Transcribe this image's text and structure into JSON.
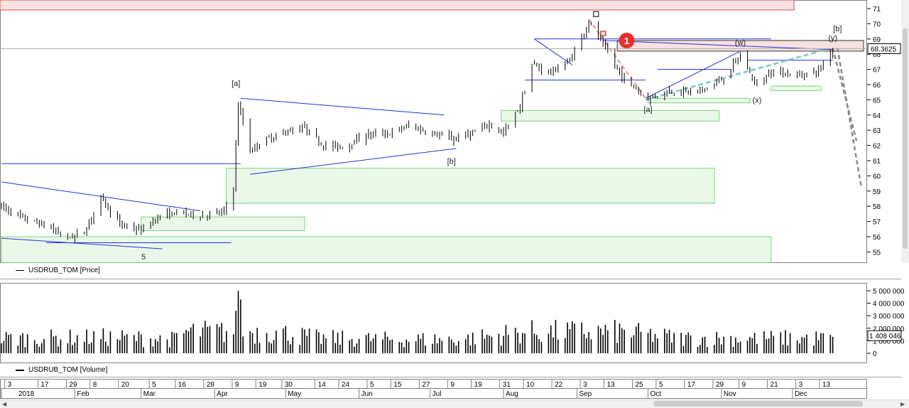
{
  "price_pane": {
    "legend_label": "USDRUB_TOM [Price]",
    "current_price_label": "68.3625",
    "y_ticks": [
      "71",
      "70",
      "69",
      "68",
      "67",
      "66",
      "65",
      "64",
      "63",
      "62",
      "61",
      "60",
      "59",
      "58",
      "57",
      "56",
      "55"
    ],
    "wave_labels": [
      {
        "text": "[a]",
        "date": "2018-04-10",
        "price": 65.9
      },
      {
        "text": "[b]",
        "date": "2018-07-10",
        "price": 60.8
      },
      {
        "text": "5",
        "date": "2018-03-02",
        "price": 54.5
      },
      {
        "text": "[a]",
        "date": "2018-10-01",
        "price": 64.2
      },
      {
        "text": "(w)",
        "date": "2018-11-09",
        "price": 68.6
      },
      {
        "text": "(x)",
        "date": "2018-11-16",
        "price": 64.8
      },
      {
        "text": "(y)",
        "date": "2018-12-18",
        "price": 68.9
      },
      {
        "text": "[b]",
        "date": "2018-12-20",
        "price": 69.5
      }
    ],
    "marker": {
      "text": "1",
      "date": "2018-09-22",
      "price": 68.9,
      "color": "#e8302f"
    }
  },
  "volume_pane": {
    "legend_label": "USDRUB_TOM [Volume]",
    "y_ticks": [
      "5 000 000",
      "4 000 000",
      "3 000 000",
      "2 000 000",
      "1 000 000",
      "0"
    ],
    "current_volume_label": "1 408 046"
  },
  "time_axis": {
    "day_ticks": [
      "3",
      "17",
      "29",
      "8",
      "20",
      "5",
      "16",
      "28",
      "9",
      "19",
      "30",
      "14",
      "24",
      "5",
      "15",
      "27",
      "9",
      "19",
      "31",
      "10",
      "22",
      "3",
      "13",
      "25",
      "5",
      "17",
      "29",
      "9",
      "21",
      "3",
      "13"
    ],
    "month_labels": [
      "2018",
      "Feb",
      "Mar",
      "Apr",
      "May",
      "Jun",
      "Jul",
      "Aug",
      "Sep",
      "Oct",
      "Nov",
      "Dec"
    ]
  },
  "colors": {
    "candle": "#000000",
    "trendline": "#2433d6",
    "zone_fill": "#eaf8ea",
    "zone_border": "#7ad37a",
    "resistance_fill": "#f9e1e1",
    "resistance_border": "#d94a4a",
    "projection_gray": "#8a8a8a",
    "projection_teal": "#7cc6c0",
    "projection_pink": "#e8a0a0"
  },
  "chart_data": {
    "type": "candlestick",
    "symbol": "USDRUB_TOM",
    "x_range": [
      "2018-01-01",
      "2018-12-31"
    ],
    "ylim": [
      54.2,
      71.3
    ],
    "series": [
      {
        "name": "USDRUB_TOM [Price]",
        "x": [
          "2018-01-01",
          "2018-01-10",
          "2018-01-20",
          "2018-01-29",
          "2018-02-05",
          "2018-02-12",
          "2018-02-20",
          "2018-03-01",
          "2018-03-08",
          "2018-03-16",
          "2018-03-26",
          "2018-04-05",
          "2018-04-09",
          "2018-04-11",
          "2018-04-16",
          "2018-04-23",
          "2018-05-01",
          "2018-05-09",
          "2018-05-17",
          "2018-05-25",
          "2018-06-04",
          "2018-06-14",
          "2018-06-22",
          "2018-07-02",
          "2018-07-10",
          "2018-07-19",
          "2018-07-26",
          "2018-08-01",
          "2018-08-08",
          "2018-08-13",
          "2018-08-21",
          "2018-08-29",
          "2018-09-06",
          "2018-09-12",
          "2018-09-20",
          "2018-10-01",
          "2018-10-10",
          "2018-10-22",
          "2018-11-01",
          "2018-11-09",
          "2018-11-16",
          "2018-11-22",
          "2018-12-03",
          "2018-12-12",
          "2018-12-18"
        ],
        "close": [
          58.0,
          57.2,
          56.7,
          55.9,
          56.3,
          58.6,
          56.8,
          56.4,
          57.3,
          57.6,
          57.4,
          57.6,
          59.3,
          64.7,
          61.7,
          62.4,
          62.9,
          63.2,
          62.0,
          61.9,
          62.7,
          62.8,
          63.3,
          62.8,
          62.4,
          62.8,
          63.4,
          62.8,
          64.6,
          67.3,
          66.8,
          67.6,
          70.1,
          68.6,
          66.5,
          65.1,
          65.6,
          65.5,
          66.3,
          67.9,
          65.9,
          66.9,
          66.6,
          66.9,
          68.4
        ]
      },
      {
        "name": "USDRUB_TOM [Volume]",
        "x": [
          "2018-01-15",
          "2018-02-15",
          "2018-03-15",
          "2018-04-10",
          "2018-04-20",
          "2018-05-15",
          "2018-06-15",
          "2018-07-15",
          "2018-08-13",
          "2018-09-06",
          "2018-10-15",
          "2018-11-15",
          "2018-12-15"
        ],
        "values": [
          1400000,
          1500000,
          1300000,
          4900000,
          2200000,
          1400000,
          1300000,
          1300000,
          2100000,
          2300000,
          1400000,
          1400000,
          1408046
        ]
      }
    ]
  }
}
